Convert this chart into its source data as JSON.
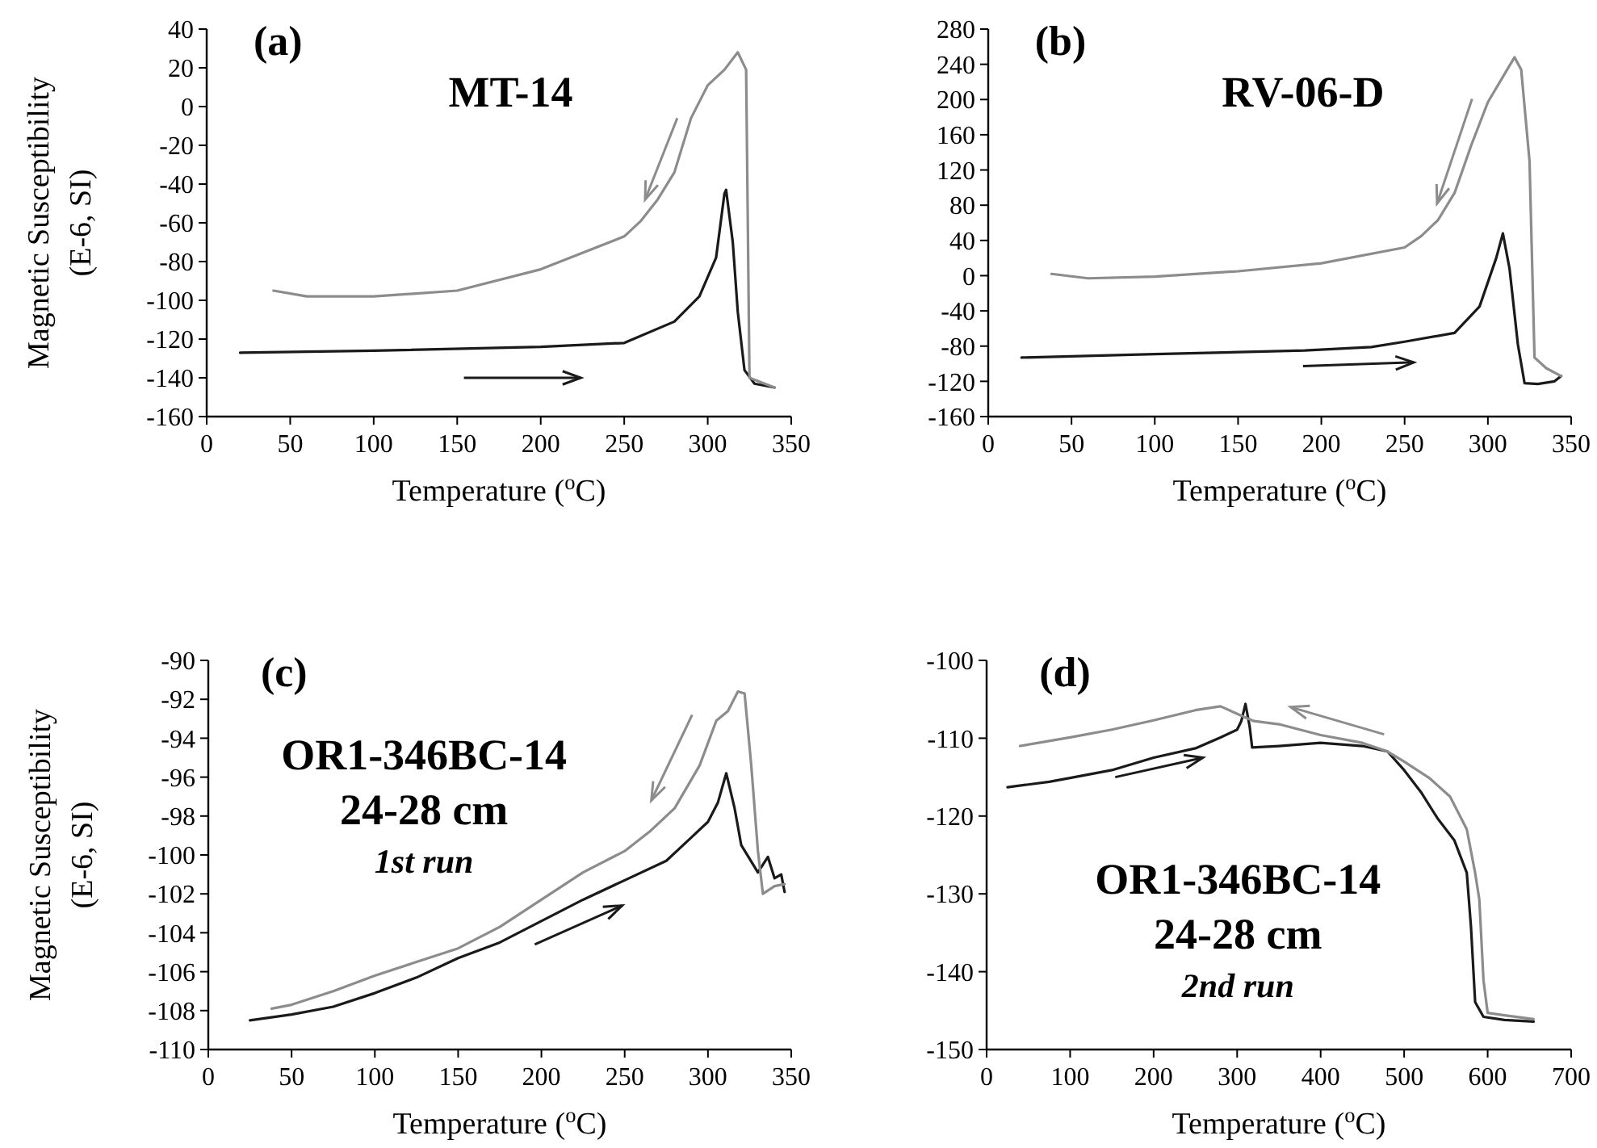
{
  "chart_data": [
    {
      "type": "line",
      "title": "(a)",
      "annotations": [
        "MT-14"
      ],
      "ylabel": "Magnetic Susceptibility (E-6, SI)",
      "xlabel": "Temperature ($^{o}$C)",
      "xlim": [
        0,
        350
      ],
      "xticks": [
        0,
        50,
        100,
        150,
        200,
        250,
        300,
        350
      ],
      "ylim": [
        -160,
        40
      ],
      "yticks": [
        -160,
        -140,
        -120,
        -100,
        -80,
        -60,
        -40,
        -20,
        0,
        20,
        40
      ],
      "series": [
        {
          "color": "#1a1a1a",
          "x": [
            20,
            100,
            200,
            250,
            280,
            295,
            305,
            310,
            311,
            315,
            318,
            322,
            328,
            340
          ],
          "values": [
            -127,
            -126,
            -124,
            -122,
            -111,
            -98,
            -78,
            -45,
            -43,
            -70,
            -106,
            -136,
            -143,
            -145
          ]
        },
        {
          "color": "#8c8c8c",
          "x": [
            340,
            325,
            323,
            318,
            310,
            300,
            290,
            280,
            270,
            260,
            250,
            200,
            150,
            100,
            60,
            40
          ],
          "values": [
            -145,
            -140,
            19,
            28,
            19,
            11,
            -6,
            -34,
            -48,
            -59,
            -67,
            -84,
            -95,
            -98,
            -98,
            -95
          ]
        }
      ]
    },
    {
      "type": "line",
      "title": "(b)",
      "annotations": [
        "RV-06-D"
      ],
      "xlabel": "Temperature ($^{o}$C)",
      "xlim": [
        0,
        350
      ],
      "xticks": [
        0,
        50,
        100,
        150,
        200,
        250,
        300,
        350
      ],
      "ylim": [
        -160,
        280
      ],
      "yticks": [
        -160,
        -120,
        -80,
        -40,
        0,
        40,
        80,
        120,
        160,
        200,
        240,
        280
      ],
      "series": [
        {
          "color": "#1a1a1a",
          "x": [
            20,
            100,
            190,
            230,
            250,
            280,
            295,
            305,
            309,
            313,
            318,
            322,
            330,
            340,
            344
          ],
          "values": [
            -93,
            -89,
            -85,
            -81,
            -75,
            -65,
            -35,
            20,
            48,
            8,
            -78,
            -122,
            -123,
            -120,
            -114
          ]
        },
        {
          "color": "#8c8c8c",
          "x": [
            344,
            335,
            328,
            325,
            320,
            316,
            300,
            290,
            280,
            270,
            260,
            250,
            200,
            150,
            100,
            60,
            38
          ],
          "values": [
            -114,
            -105,
            -93,
            130,
            234,
            248,
            197,
            148,
            94,
            63,
            45,
            32,
            14,
            5,
            -1,
            -3,
            2
          ]
        }
      ]
    },
    {
      "type": "line",
      "title": "(c)",
      "annotations": [
        "OR1-346BC-14",
        "24-28 cm",
        "1st run"
      ],
      "ylabel": "Magnetic Susceptibility (E-6, SI)",
      "xlabel": "Temperature ($^{o}$C)",
      "xlim": [
        0,
        350
      ],
      "xticks": [
        0,
        50,
        100,
        150,
        200,
        250,
        300,
        350
      ],
      "ylim": [
        -110,
        -90
      ],
      "yticks": [
        -110,
        -108,
        -106,
        -104,
        -102,
        -100,
        -98,
        -96,
        -94,
        -92,
        -90
      ],
      "series": [
        {
          "color": "#1a1a1a",
          "x": [
            25,
            50,
            75,
            100,
            125,
            150,
            175,
            200,
            225,
            250,
            275,
            290,
            300,
            306,
            311,
            316,
            320,
            330,
            336,
            340,
            344,
            346
          ],
          "values": [
            -108.5,
            -108.2,
            -107.8,
            -107.1,
            -106.3,
            -105.3,
            -104.5,
            -103.4,
            -102.3,
            -101.3,
            -100.3,
            -99.1,
            -98.3,
            -97.3,
            -95.8,
            -97.6,
            -99.5,
            -100.9,
            -100.1,
            -101.2,
            -101,
            -101.9
          ]
        },
        {
          "color": "#8c8c8c",
          "x": [
            346,
            340,
            333,
            330,
            326,
            322,
            318,
            312,
            305,
            295,
            280,
            265,
            250,
            225,
            200,
            175,
            150,
            125,
            100,
            75,
            50,
            38
          ],
          "values": [
            -101.5,
            -101.6,
            -102,
            -99.8,
            -95.4,
            -91.7,
            -91.6,
            -92.6,
            -93.1,
            -95.4,
            -97.6,
            -98.8,
            -99.8,
            -100.9,
            -102.3,
            -103.7,
            -104.8,
            -105.5,
            -106.2,
            -107,
            -107.7,
            -107.9
          ]
        }
      ]
    },
    {
      "type": "line",
      "title": "(d)",
      "annotations": [
        "OR1-346BC-14",
        "24-28 cm",
        "2nd run"
      ],
      "xlabel": "Temperature ($^{o}$C)",
      "xlim": [
        0,
        700
      ],
      "xticks": [
        0,
        100,
        200,
        300,
        400,
        500,
        600,
        700
      ],
      "ylim": [
        -150,
        -100
      ],
      "yticks": [
        -150,
        -140,
        -130,
        -120,
        -110,
        -100
      ],
      "series": [
        {
          "color": "#1a1a1a",
          "x": [
            25,
            75,
            100,
            150,
            200,
            250,
            280,
            300,
            305,
            310,
            315,
            318,
            350,
            400,
            450,
            480,
            500,
            520,
            540,
            560,
            575,
            580,
            585,
            595,
            620,
            655
          ],
          "values": [
            -116.3,
            -115.6,
            -115.1,
            -114.1,
            -112.5,
            -111.3,
            -109.9,
            -108.9,
            -107.8,
            -105.6,
            -108.5,
            -111.2,
            -111,
            -110.6,
            -111,
            -111.7,
            -114.1,
            -116.9,
            -120.3,
            -123.1,
            -127.3,
            -134.2,
            -143.9,
            -145.8,
            -146.2,
            -146.4
          ]
        },
        {
          "color": "#8c8c8c",
          "x": [
            655,
            620,
            600,
            595,
            590,
            585,
            575,
            555,
            530,
            500,
            480,
            450,
            400,
            350,
            320,
            305,
            280,
            250,
            200,
            150,
            100,
            40
          ],
          "values": [
            -146.1,
            -145.6,
            -145.3,
            -141.1,
            -130.7,
            -127.3,
            -121.7,
            -117.5,
            -115.1,
            -113,
            -111.7,
            -110.6,
            -109.6,
            -108.2,
            -107.8,
            -107.1,
            -105.9,
            -106.4,
            -107.7,
            -108.9,
            -109.9,
            -111
          ]
        }
      ]
    }
  ]
}
